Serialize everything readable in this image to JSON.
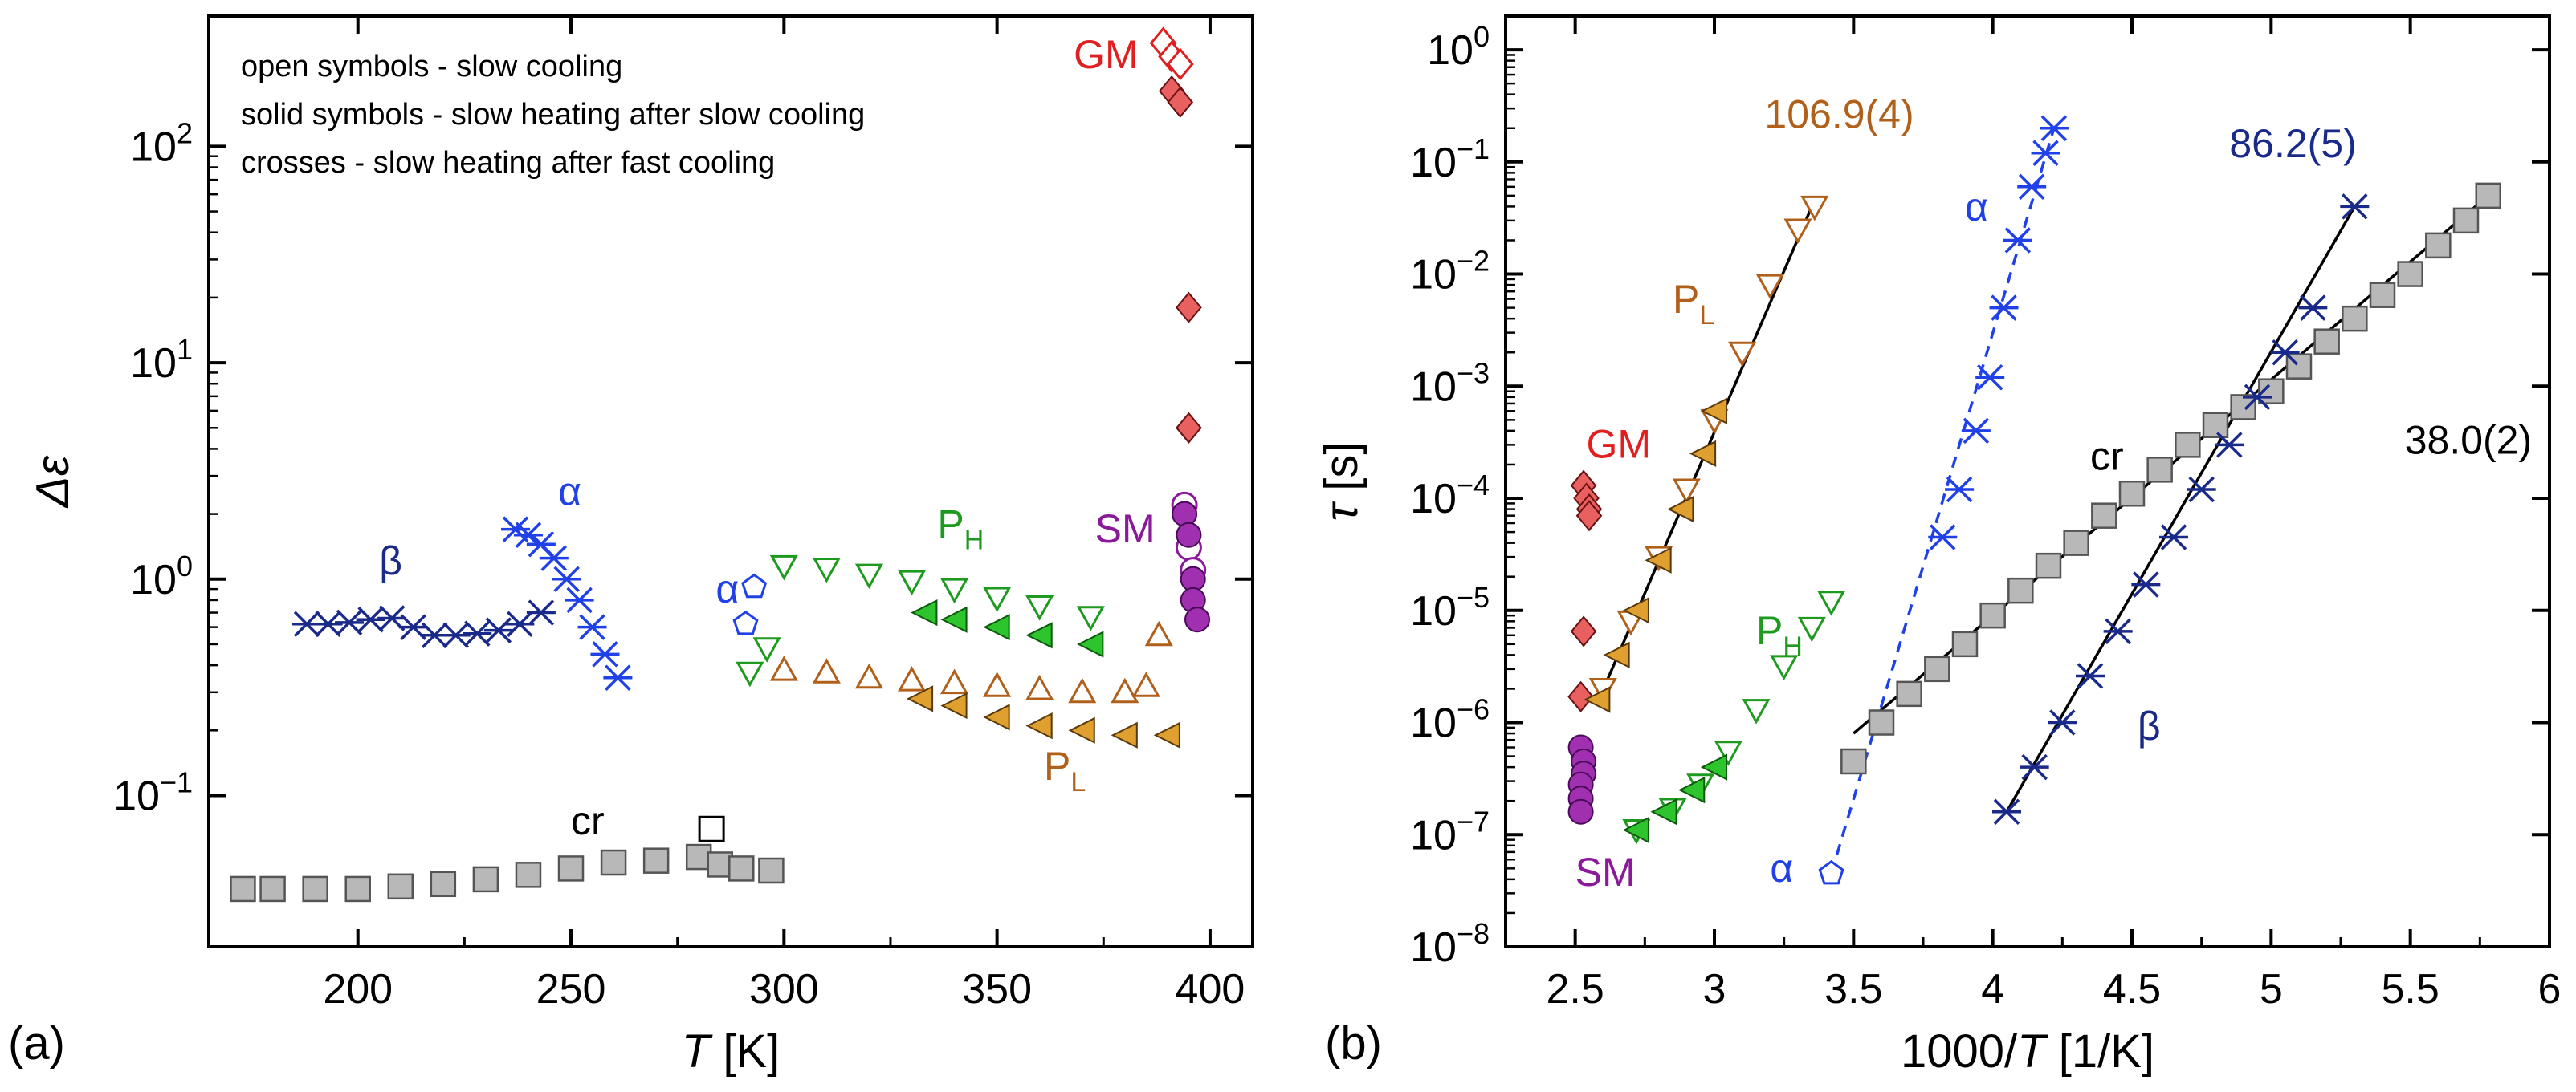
{
  "colors": {
    "cr": "#000000",
    "beta": "#1a2a8a",
    "alpha": "#2040e8",
    "PH": "#1e9a1e",
    "PL": "#b0601a",
    "GM": "#e02020",
    "SM": "#8a1a9a"
  },
  "chart_data": [
    {
      "type": "scatter",
      "panel_label": "(a)",
      "xlabel_italic": "T",
      "xlabel_rest": " [K]",
      "ylabel": "Δε",
      "xscale": "linear",
      "yscale": "log",
      "xlim": [
        165,
        410
      ],
      "ylim": [
        0.02,
        400
      ],
      "xticks": [
        200,
        250,
        300,
        350,
        400
      ],
      "xtick_labels": [
        "200",
        "250",
        "300",
        "350",
        "400"
      ],
      "yticks": [
        0.1,
        1,
        10,
        100
      ],
      "ytick_labels": [
        [
          "10",
          "−1"
        ],
        [
          "10",
          "0"
        ],
        [
          "10",
          "1"
        ],
        [
          "10",
          "2"
        ]
      ],
      "legend": [
        "open symbols - slow cooling",
        "solid symbols - slow heating after slow cooling",
        "crosses - slow heating after fast cooling"
      ],
      "annotations": [
        {
          "text": "cr",
          "sub": "",
          "series": "cr",
          "x": 250,
          "y": 0.066
        },
        {
          "text": "β",
          "sub": "",
          "series": "beta",
          "x": 205,
          "y": 1.05
        },
        {
          "text": "α",
          "sub": "",
          "series": "alpha",
          "x": 247,
          "y": 2.2
        },
        {
          "text": "α",
          "sub": "",
          "series": "alpha",
          "x": 284,
          "y": 0.78
        },
        {
          "text": "P",
          "sub": "H",
          "series": "PH",
          "x": 336,
          "y": 1.55
        },
        {
          "text": "P",
          "sub": "L",
          "series": "PL",
          "x": 361,
          "y": 0.118
        },
        {
          "text": "GM",
          "sub": "",
          "series": "GM",
          "x": 368,
          "y": 230
        },
        {
          "text": "SM",
          "sub": "",
          "series": "SM",
          "x": 373,
          "y": 1.48
        }
      ],
      "series": [
        {
          "key": "cr",
          "marker": "square-filled",
          "x": [
            173,
            180,
            190,
            200,
            210,
            220,
            230,
            240,
            250,
            260,
            270,
            280,
            285,
            290,
            297
          ],
          "y": [
            0.037,
            0.037,
            0.037,
            0.037,
            0.038,
            0.039,
            0.041,
            0.043,
            0.046,
            0.049,
            0.05,
            0.052,
            0.048,
            0.046,
            0.045
          ]
        },
        {
          "key": "cr",
          "marker": "square-open",
          "x": [
            283
          ],
          "y": [
            0.07
          ]
        },
        {
          "key": "beta",
          "marker": "cross",
          "x": [
            188,
            193,
            198,
            203,
            208,
            213,
            218,
            223,
            228,
            233,
            238,
            243
          ],
          "y": [
            0.62,
            0.62,
            0.63,
            0.65,
            0.66,
            0.6,
            0.55,
            0.55,
            0.56,
            0.58,
            0.62,
            0.7
          ]
        },
        {
          "key": "alpha",
          "marker": "cross",
          "x": [
            237,
            240,
            243,
            246,
            249,
            252,
            255,
            258,
            261
          ],
          "y": [
            1.7,
            1.6,
            1.45,
            1.25,
            1.0,
            0.8,
            0.6,
            0.45,
            0.35
          ]
        },
        {
          "key": "alpha",
          "marker": "pentagon-open",
          "x": [
            291,
            293
          ],
          "y": [
            0.62,
            0.92
          ]
        },
        {
          "key": "PH",
          "marker": "tri-down-open",
          "x": [
            292,
            296,
            300,
            310,
            320,
            330,
            340,
            350,
            360,
            372
          ],
          "y": [
            0.37,
            0.48,
            1.15,
            1.12,
            1.05,
            0.98,
            0.9,
            0.82,
            0.75,
            0.67
          ]
        },
        {
          "key": "PH",
          "marker": "tri-left-filled",
          "x": [
            333,
            340,
            350,
            360,
            372
          ],
          "y": [
            0.7,
            0.65,
            0.6,
            0.55,
            0.5
          ]
        },
        {
          "key": "PL",
          "marker": "tri-up-open",
          "x": [
            300,
            310,
            320,
            330,
            340,
            350,
            360,
            370,
            380,
            385,
            388
          ],
          "y": [
            0.38,
            0.37,
            0.35,
            0.34,
            0.33,
            0.32,
            0.31,
            0.3,
            0.3,
            0.32,
            0.55
          ]
        },
        {
          "key": "PL",
          "marker": "tri-left-filled-gold",
          "x": [
            332,
            340,
            350,
            360,
            370,
            380,
            390
          ],
          "y": [
            0.28,
            0.26,
            0.23,
            0.21,
            0.2,
            0.19,
            0.19
          ]
        },
        {
          "key": "GM",
          "marker": "diamond-open",
          "x": [
            389,
            391,
            393
          ],
          "y": [
            300,
            260,
            240
          ]
        },
        {
          "key": "GM",
          "marker": "diamond-filled",
          "x": [
            391,
            393,
            395,
            395,
            395
          ],
          "y": [
            180,
            160,
            18,
            5,
            5
          ]
        },
        {
          "key": "SM",
          "marker": "circle-open",
          "x": [
            394,
            395,
            396
          ],
          "y": [
            2.2,
            1.4,
            1.1
          ]
        },
        {
          "key": "SM",
          "marker": "circle-filled",
          "x": [
            394,
            395,
            396,
            396,
            397
          ],
          "y": [
            2.0,
            1.6,
            1.0,
            0.8,
            0.65
          ]
        }
      ]
    },
    {
      "type": "scatter",
      "panel_label": "(b)",
      "xlabel_pre": "1000/",
      "xlabel_italic": "T",
      "xlabel_rest": " [1/K]",
      "ylabel_italic": "τ",
      "ylabel_rest": " [s]",
      "xscale": "linear",
      "yscale": "log",
      "xlim": [
        2.25,
        6.0
      ],
      "ylim": [
        1e-08,
        2
      ],
      "xticks": [
        2.5,
        3,
        3.5,
        4,
        4.5,
        5,
        5.5,
        6
      ],
      "xtick_labels": [
        "2.5",
        "3",
        "3.5",
        "4",
        "4.5",
        "5",
        "5.5",
        "6"
      ],
      "yticks": [
        1e-08,
        1e-07,
        1e-06,
        1e-05,
        0.0001,
        0.001,
        0.01,
        0.1,
        1
      ],
      "ytick_labels": [
        [
          "10",
          "−8"
        ],
        [
          "10",
          "−7"
        ],
        [
          "10",
          "−6"
        ],
        [
          "10",
          "−5"
        ],
        [
          "10",
          "−4"
        ],
        [
          "10",
          "−3"
        ],
        [
          "10",
          "−2"
        ],
        [
          "10",
          "−1"
        ],
        [
          "10",
          "0"
        ]
      ],
      "annotations": [
        {
          "text": "106.9(4)",
          "sub": "",
          "series": "PL",
          "x": 3.18,
          "y": 0.2
        },
        {
          "text": "P",
          "sub": "L",
          "series": "PL",
          "x": 2.85,
          "y": 0.0045
        },
        {
          "text": "GM",
          "sub": "",
          "series": "GM",
          "x": 2.54,
          "y": 0.00023
        },
        {
          "text": "SM",
          "sub": "",
          "series": "SM",
          "x": 2.5,
          "y": 3.5e-08
        },
        {
          "text": "P",
          "sub": "H",
          "series": "PH",
          "x": 3.15,
          "y": 5e-06
        },
        {
          "text": "α",
          "sub": "",
          "series": "alpha",
          "x": 3.9,
          "y": 0.03
        },
        {
          "text": "α",
          "sub": "",
          "series": "alpha",
          "x": 3.2,
          "y": 3.8e-08
        },
        {
          "text": "86.2(5)",
          "sub": "",
          "series": "beta",
          "x": 4.85,
          "y": 0.11
        },
        {
          "text": "cr",
          "sub": "",
          "series": "cr",
          "x": 4.35,
          "y": 0.00018
        },
        {
          "text": "38.0(2)",
          "sub": "",
          "series": "cr",
          "x": 5.48,
          "y": 0.00025
        },
        {
          "text": "β",
          "sub": "",
          "series": "beta",
          "x": 4.52,
          "y": 7e-07
        }
      ],
      "fit_lines": [
        {
          "series": "PL",
          "style": "solid",
          "x": [
            2.58,
            3.35
          ],
          "y": [
            1.5e-06,
            0.04
          ]
        },
        {
          "series": "beta",
          "style": "solid",
          "x": [
            4.05,
            5.3
          ],
          "y": [
            1.6e-07,
            0.04
          ]
        },
        {
          "series": "cr",
          "style": "solid",
          "x": [
            3.5,
            5.78
          ],
          "y": [
            8e-07,
            0.05
          ]
        },
        {
          "series": "alpha",
          "style": "dashed",
          "x": [
            3.42,
            4.22
          ],
          "y": [
            4.5e-08,
            0.2
          ]
        }
      ],
      "series": [
        {
          "key": "GM",
          "marker": "diamond-filled",
          "x": [
            2.53,
            2.54,
            2.55,
            2.55,
            2.53,
            2.52
          ],
          "y": [
            0.00013,
            0.0001,
            8e-05,
            7e-05,
            6.5e-06,
            1.7e-06
          ]
        },
        {
          "key": "SM",
          "marker": "circle-filled",
          "x": [
            2.52,
            2.53,
            2.53,
            2.52,
            2.52,
            2.52
          ],
          "y": [
            6e-07,
            4.5e-07,
            3.5e-07,
            2.8e-07,
            2.1e-07,
            1.6e-07
          ]
        },
        {
          "key": "PL",
          "marker": "tri-down-open",
          "x": [
            2.6,
            2.7,
            2.8,
            2.9,
            3.0,
            3.1,
            3.2,
            3.3,
            3.36
          ],
          "y": [
            2e-06,
            8e-06,
            3e-05,
            0.00012,
            0.0005,
            0.002,
            0.008,
            0.025,
            0.04
          ]
        },
        {
          "key": "PL",
          "marker": "tri-left-filled-gold",
          "x": [
            2.58,
            2.65,
            2.72,
            2.8,
            2.88,
            2.96,
            3.0
          ],
          "y": [
            1.6e-06,
            4e-06,
            1e-05,
            2.8e-05,
            8e-05,
            0.00025,
            0.0006
          ]
        },
        {
          "key": "PH",
          "marker": "tri-down-open",
          "x": [
            2.72,
            2.85,
            2.95,
            3.05,
            3.15,
            3.25,
            3.35,
            3.42
          ],
          "y": [
            1.1e-07,
            1.7e-07,
            2.8e-07,
            5.5e-07,
            1.3e-06,
            3.2e-06,
            7e-06,
            1.2e-05
          ]
        },
        {
          "key": "PH",
          "marker": "tri-left-filled",
          "x": [
            2.72,
            2.82,
            2.92,
            3.0
          ],
          "y": [
            1.1e-07,
            1.6e-07,
            2.5e-07,
            4e-07
          ]
        },
        {
          "key": "alpha",
          "marker": "cross",
          "x": [
            3.82,
            3.88,
            3.94,
            3.99,
            4.04,
            4.09,
            4.14,
            4.19,
            4.22
          ],
          "y": [
            4.5e-05,
            0.00012,
            0.0004,
            0.0012,
            0.005,
            0.02,
            0.06,
            0.12,
            0.2
          ]
        },
        {
          "key": "alpha",
          "marker": "pentagon-open",
          "x": [
            3.42
          ],
          "y": [
            4.5e-08
          ]
        },
        {
          "key": "cr",
          "marker": "square-filled",
          "x": [
            3.5,
            3.6,
            3.7,
            3.8,
            3.9,
            4.0,
            4.1,
            4.2,
            4.3,
            4.4,
            4.5,
            4.6,
            4.7,
            4.8,
            4.9,
            5.0,
            5.1,
            5.2,
            5.3,
            5.4,
            5.5,
            5.6,
            5.7,
            5.78
          ],
          "y": [
            4.5e-07,
            1e-06,
            1.8e-06,
            3e-06,
            5e-06,
            9e-06,
            1.5e-05,
            2.5e-05,
            4e-05,
            7e-05,
            0.00011,
            0.00018,
            0.0003,
            0.00045,
            0.00065,
            0.0009,
            0.0015,
            0.0025,
            0.004,
            0.0065,
            0.01,
            0.018,
            0.03,
            0.05
          ]
        },
        {
          "key": "beta",
          "marker": "cross",
          "x": [
            4.05,
            4.15,
            4.25,
            4.35,
            4.45,
            4.55,
            4.65,
            4.75,
            4.85,
            4.95,
            5.05,
            5.15,
            5.3
          ],
          "y": [
            1.6e-07,
            4e-07,
            1e-06,
            2.6e-06,
            6.5e-06,
            1.7e-05,
            4.5e-05,
            0.00012,
            0.0003,
            0.0008,
            0.002,
            0.005,
            0.04
          ]
        }
      ]
    }
  ]
}
